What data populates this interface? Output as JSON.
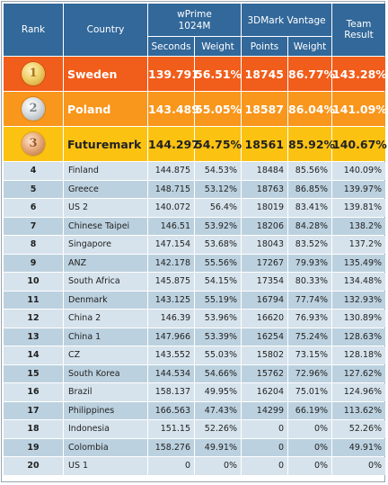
{
  "header": {
    "rank": "Rank",
    "country": "Country",
    "wprime": "wPrime\n1024M",
    "wprime_line1": "wPrime",
    "wprime_line2": "1024M",
    "vantage": "3DMark Vantage",
    "team_line1": "Team",
    "team_line2": "Result",
    "seconds": "Seconds",
    "weight1": "Weight",
    "points": "Points",
    "weight2": "Weight"
  },
  "colors": {
    "header_bg": "#32689a",
    "gold_row": "#f15d1a",
    "silver_row": "#f9961c",
    "bronze_row": "#fcc212",
    "row_light": "#d6e3ec",
    "row_dark": "#bcd1df"
  },
  "podium": [
    {
      "medal": "1",
      "medal_icon": "gold-medal-icon",
      "country": "Sweden",
      "seconds": "139.791",
      "weight1": "56.51%",
      "points": "18745",
      "weight2": "86.77%",
      "result": "143.28%"
    },
    {
      "medal": "2",
      "medal_icon": "silver-medal-icon",
      "country": "Poland",
      "seconds": "143.489",
      "weight1": "55.05%",
      "points": "18587",
      "weight2": "86.04%",
      "result": "141.09%"
    },
    {
      "medal": "3",
      "medal_icon": "bronze-medal-icon",
      "country": "Futuremark",
      "seconds": "144.297",
      "weight1": "54.75%",
      "points": "18561",
      "weight2": "85.92%",
      "result": "140.67%"
    }
  ],
  "rows": [
    {
      "rank": "4",
      "country": "Finland",
      "seconds": "144.875",
      "weight1": "54.53%",
      "points": "18484",
      "weight2": "85.56%",
      "result": "140.09%"
    },
    {
      "rank": "5",
      "country": "Greece",
      "seconds": "148.715",
      "weight1": "53.12%",
      "points": "18763",
      "weight2": "86.85%",
      "result": "139.97%"
    },
    {
      "rank": "6",
      "country": "US 2",
      "seconds": "140.072",
      "weight1": "56.4%",
      "points": "18019",
      "weight2": "83.41%",
      "result": "139.81%"
    },
    {
      "rank": "7",
      "country": "Chinese Taipei",
      "seconds": "146.51",
      "weight1": "53.92%",
      "points": "18206",
      "weight2": "84.28%",
      "result": "138.2%"
    },
    {
      "rank": "8",
      "country": "Singapore",
      "seconds": "147.154",
      "weight1": "53.68%",
      "points": "18043",
      "weight2": "83.52%",
      "result": "137.2%"
    },
    {
      "rank": "9",
      "country": "ANZ",
      "seconds": "142.178",
      "weight1": "55.56%",
      "points": "17267",
      "weight2": "79.93%",
      "result": "135.49%"
    },
    {
      "rank": "10",
      "country": "South Africa",
      "seconds": "145.875",
      "weight1": "54.15%",
      "points": "17354",
      "weight2": "80.33%",
      "result": "134.48%"
    },
    {
      "rank": "11",
      "country": "Denmark",
      "seconds": "143.125",
      "weight1": "55.19%",
      "points": "16794",
      "weight2": "77.74%",
      "result": "132.93%"
    },
    {
      "rank": "12",
      "country": "China 2",
      "seconds": "146.39",
      "weight1": "53.96%",
      "points": "16620",
      "weight2": "76.93%",
      "result": "130.89%"
    },
    {
      "rank": "13",
      "country": "China 1",
      "seconds": "147.966",
      "weight1": "53.39%",
      "points": "16254",
      "weight2": "75.24%",
      "result": "128.63%"
    },
    {
      "rank": "14",
      "country": "CZ",
      "seconds": "143.552",
      "weight1": "55.03%",
      "points": "15802",
      "weight2": "73.15%",
      "result": "128.18%"
    },
    {
      "rank": "15",
      "country": "South Korea",
      "seconds": "144.534",
      "weight1": "54.66%",
      "points": "15762",
      "weight2": "72.96%",
      "result": "127.62%"
    },
    {
      "rank": "16",
      "country": "Brazil",
      "seconds": "158.137",
      "weight1": "49.95%",
      "points": "16204",
      "weight2": "75.01%",
      "result": "124.96%"
    },
    {
      "rank": "17",
      "country": "Philippines",
      "seconds": "166.563",
      "weight1": "47.43%",
      "points": "14299",
      "weight2": "66.19%",
      "result": "113.62%"
    },
    {
      "rank": "18",
      "country": "Indonesia",
      "seconds": "151.15",
      "weight1": "52.26%",
      "points": "0",
      "weight2": "0%",
      "result": "52.26%"
    },
    {
      "rank": "19",
      "country": "Colombia",
      "seconds": "158.276",
      "weight1": "49.91%",
      "points": "0",
      "weight2": "0%",
      "result": "49.91%"
    },
    {
      "rank": "20",
      "country": "US 1",
      "seconds": "0",
      "weight1": "0%",
      "points": "0",
      "weight2": "0%",
      "result": "0%"
    }
  ]
}
